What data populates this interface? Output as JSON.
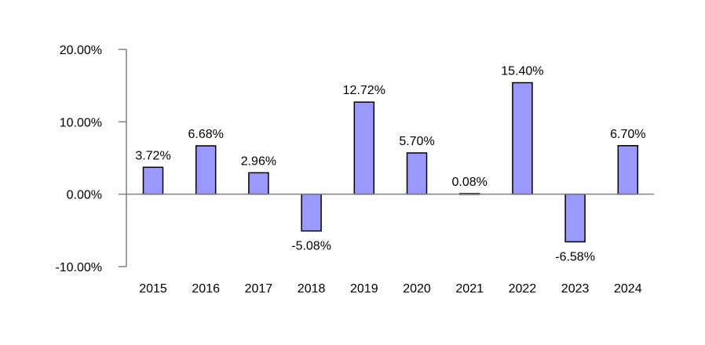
{
  "chart_data": {
    "type": "bar",
    "categories": [
      "2015",
      "2016",
      "2017",
      "2018",
      "2019",
      "2020",
      "2021",
      "2022",
      "2023",
      "2024"
    ],
    "values": [
      3.72,
      6.68,
      2.96,
      -5.08,
      12.72,
      5.7,
      0.08,
      15.4,
      -6.58,
      6.7
    ],
    "value_labels": [
      "3.72%",
      "6.68%",
      "2.96%",
      "-5.08%",
      "12.72%",
      "5.70%",
      "0.08%",
      "15.40%",
      "-6.58%",
      "6.70%"
    ],
    "yticks": [
      20,
      10,
      0,
      -10
    ],
    "ytick_labels": [
      "20.00%",
      "10.00%",
      "0.00%",
      "-10.00%"
    ],
    "ylim": [
      -10,
      20
    ],
    "grid": false,
    "legend": "none",
    "colors": {
      "bar_fill": "#9999ff",
      "bar_stroke": "#000000",
      "axis": "#808080"
    }
  }
}
